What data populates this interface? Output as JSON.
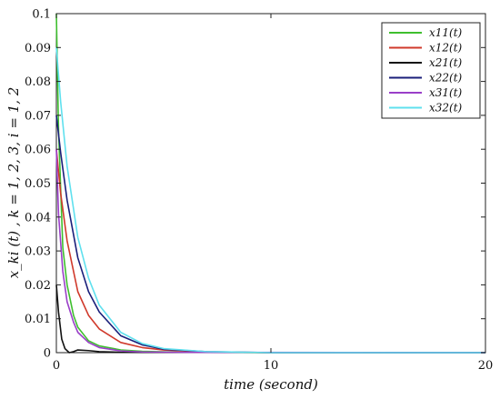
{
  "chart_data": {
    "type": "line",
    "xlabel": "time (second)",
    "ylabel": "x_ki (t) , k = 1, 2, 3, i = 1, 2",
    "xlim": [
      0,
      20
    ],
    "ylim": [
      0,
      0.1
    ],
    "x_ticks": [
      "0",
      "10",
      "20"
    ],
    "y_ticks": [
      "0",
      "0.01",
      "0.02",
      "0.03",
      "0.04",
      "0.05",
      "0.06",
      "0.07",
      "0.08",
      "0.09",
      "0.1"
    ],
    "grid": false,
    "legend_position": "top-right",
    "series": [
      {
        "name": "x11(t)",
        "color": "#3fbf2f",
        "x": [
          0,
          0.1,
          0.3,
          0.5,
          0.8,
          1,
          1.5,
          2,
          3,
          4,
          6,
          10,
          20
        ],
        "y": [
          0.1,
          0.066,
          0.031,
          0.02,
          0.011,
          0.0075,
          0.0035,
          0.002,
          0.0008,
          0.0004,
          0.0001,
          0,
          0
        ]
      },
      {
        "name": "x12(t)",
        "color": "#d0392b",
        "x": [
          0,
          0.2,
          0.5,
          1,
          1.5,
          2,
          3,
          4,
          5,
          7,
          10,
          20
        ],
        "y": [
          0.06,
          0.047,
          0.033,
          0.018,
          0.011,
          0.007,
          0.003,
          0.0015,
          0.0008,
          0.0002,
          0,
          0
        ]
      },
      {
        "name": "x21(t)",
        "color": "#111111",
        "x": [
          0,
          0.1,
          0.25,
          0.4,
          0.6,
          0.8,
          1,
          1.5,
          2,
          3,
          20
        ],
        "y": [
          0.02,
          0.012,
          0.004,
          0.0012,
          0.0,
          0.0003,
          0.0008,
          0.0006,
          0.0003,
          0.0001,
          0
        ]
      },
      {
        "name": "x22(t)",
        "color": "#1a1f7a",
        "x": [
          0,
          0.2,
          0.5,
          1,
          1.5,
          2,
          3,
          4,
          5,
          7,
          10,
          20
        ],
        "y": [
          0.07,
          0.059,
          0.045,
          0.028,
          0.018,
          0.012,
          0.005,
          0.0023,
          0.001,
          0.0003,
          0,
          0
        ]
      },
      {
        "name": "x31(t)",
        "color": "#9a3fc8",
        "x": [
          0,
          0.1,
          0.3,
          0.5,
          0.8,
          1,
          1.5,
          2,
          3,
          4,
          6,
          20
        ],
        "y": [
          0.06,
          0.041,
          0.024,
          0.015,
          0.009,
          0.006,
          0.003,
          0.0015,
          0.0005,
          0.0002,
          0.0001,
          0
        ]
      },
      {
        "name": "x32(t)",
        "color": "#5fe0ee",
        "x": [
          0,
          0.2,
          0.5,
          1,
          1.5,
          2,
          3,
          4,
          5,
          7,
          10,
          20
        ],
        "y": [
          0.09,
          0.074,
          0.055,
          0.034,
          0.022,
          0.014,
          0.006,
          0.0027,
          0.0012,
          0.0003,
          0,
          0
        ]
      }
    ]
  }
}
